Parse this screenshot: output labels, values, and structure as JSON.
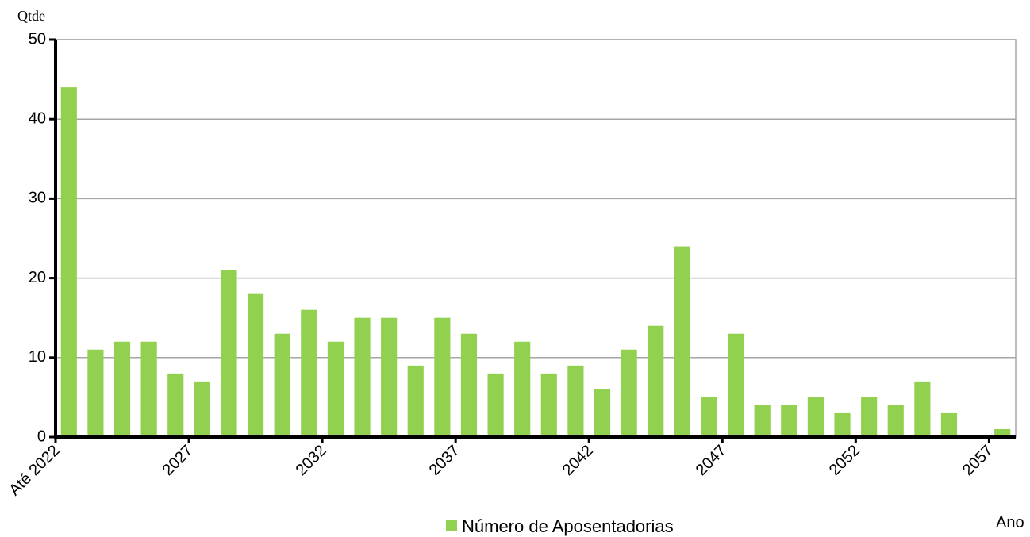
{
  "chart_data": {
    "type": "bar",
    "y_label": "Qtde",
    "x_label": "Ano",
    "categories": [
      "Até 2022",
      null,
      null,
      null,
      null,
      "2027",
      null,
      null,
      null,
      null,
      "2032",
      null,
      null,
      null,
      null,
      "2037",
      null,
      null,
      null,
      null,
      "2042",
      null,
      null,
      null,
      null,
      "2047",
      null,
      null,
      null,
      null,
      "2052",
      null,
      null,
      null,
      null,
      "2057"
    ],
    "series": [
      {
        "name": "Número de Aposentadorias",
        "color": "#92d050",
        "values": [
          44,
          11,
          12,
          12,
          8,
          7,
          21,
          18,
          13,
          16,
          12,
          15,
          15,
          9,
          15,
          13,
          8,
          12,
          8,
          9,
          6,
          11,
          14,
          24,
          5,
          13,
          4,
          4,
          5,
          3,
          5,
          4,
          7,
          3,
          0,
          1
        ]
      }
    ],
    "ylim": [
      0,
      50
    ],
    "yticks": [
      0,
      10,
      20,
      30,
      40,
      50
    ],
    "grid": true
  }
}
